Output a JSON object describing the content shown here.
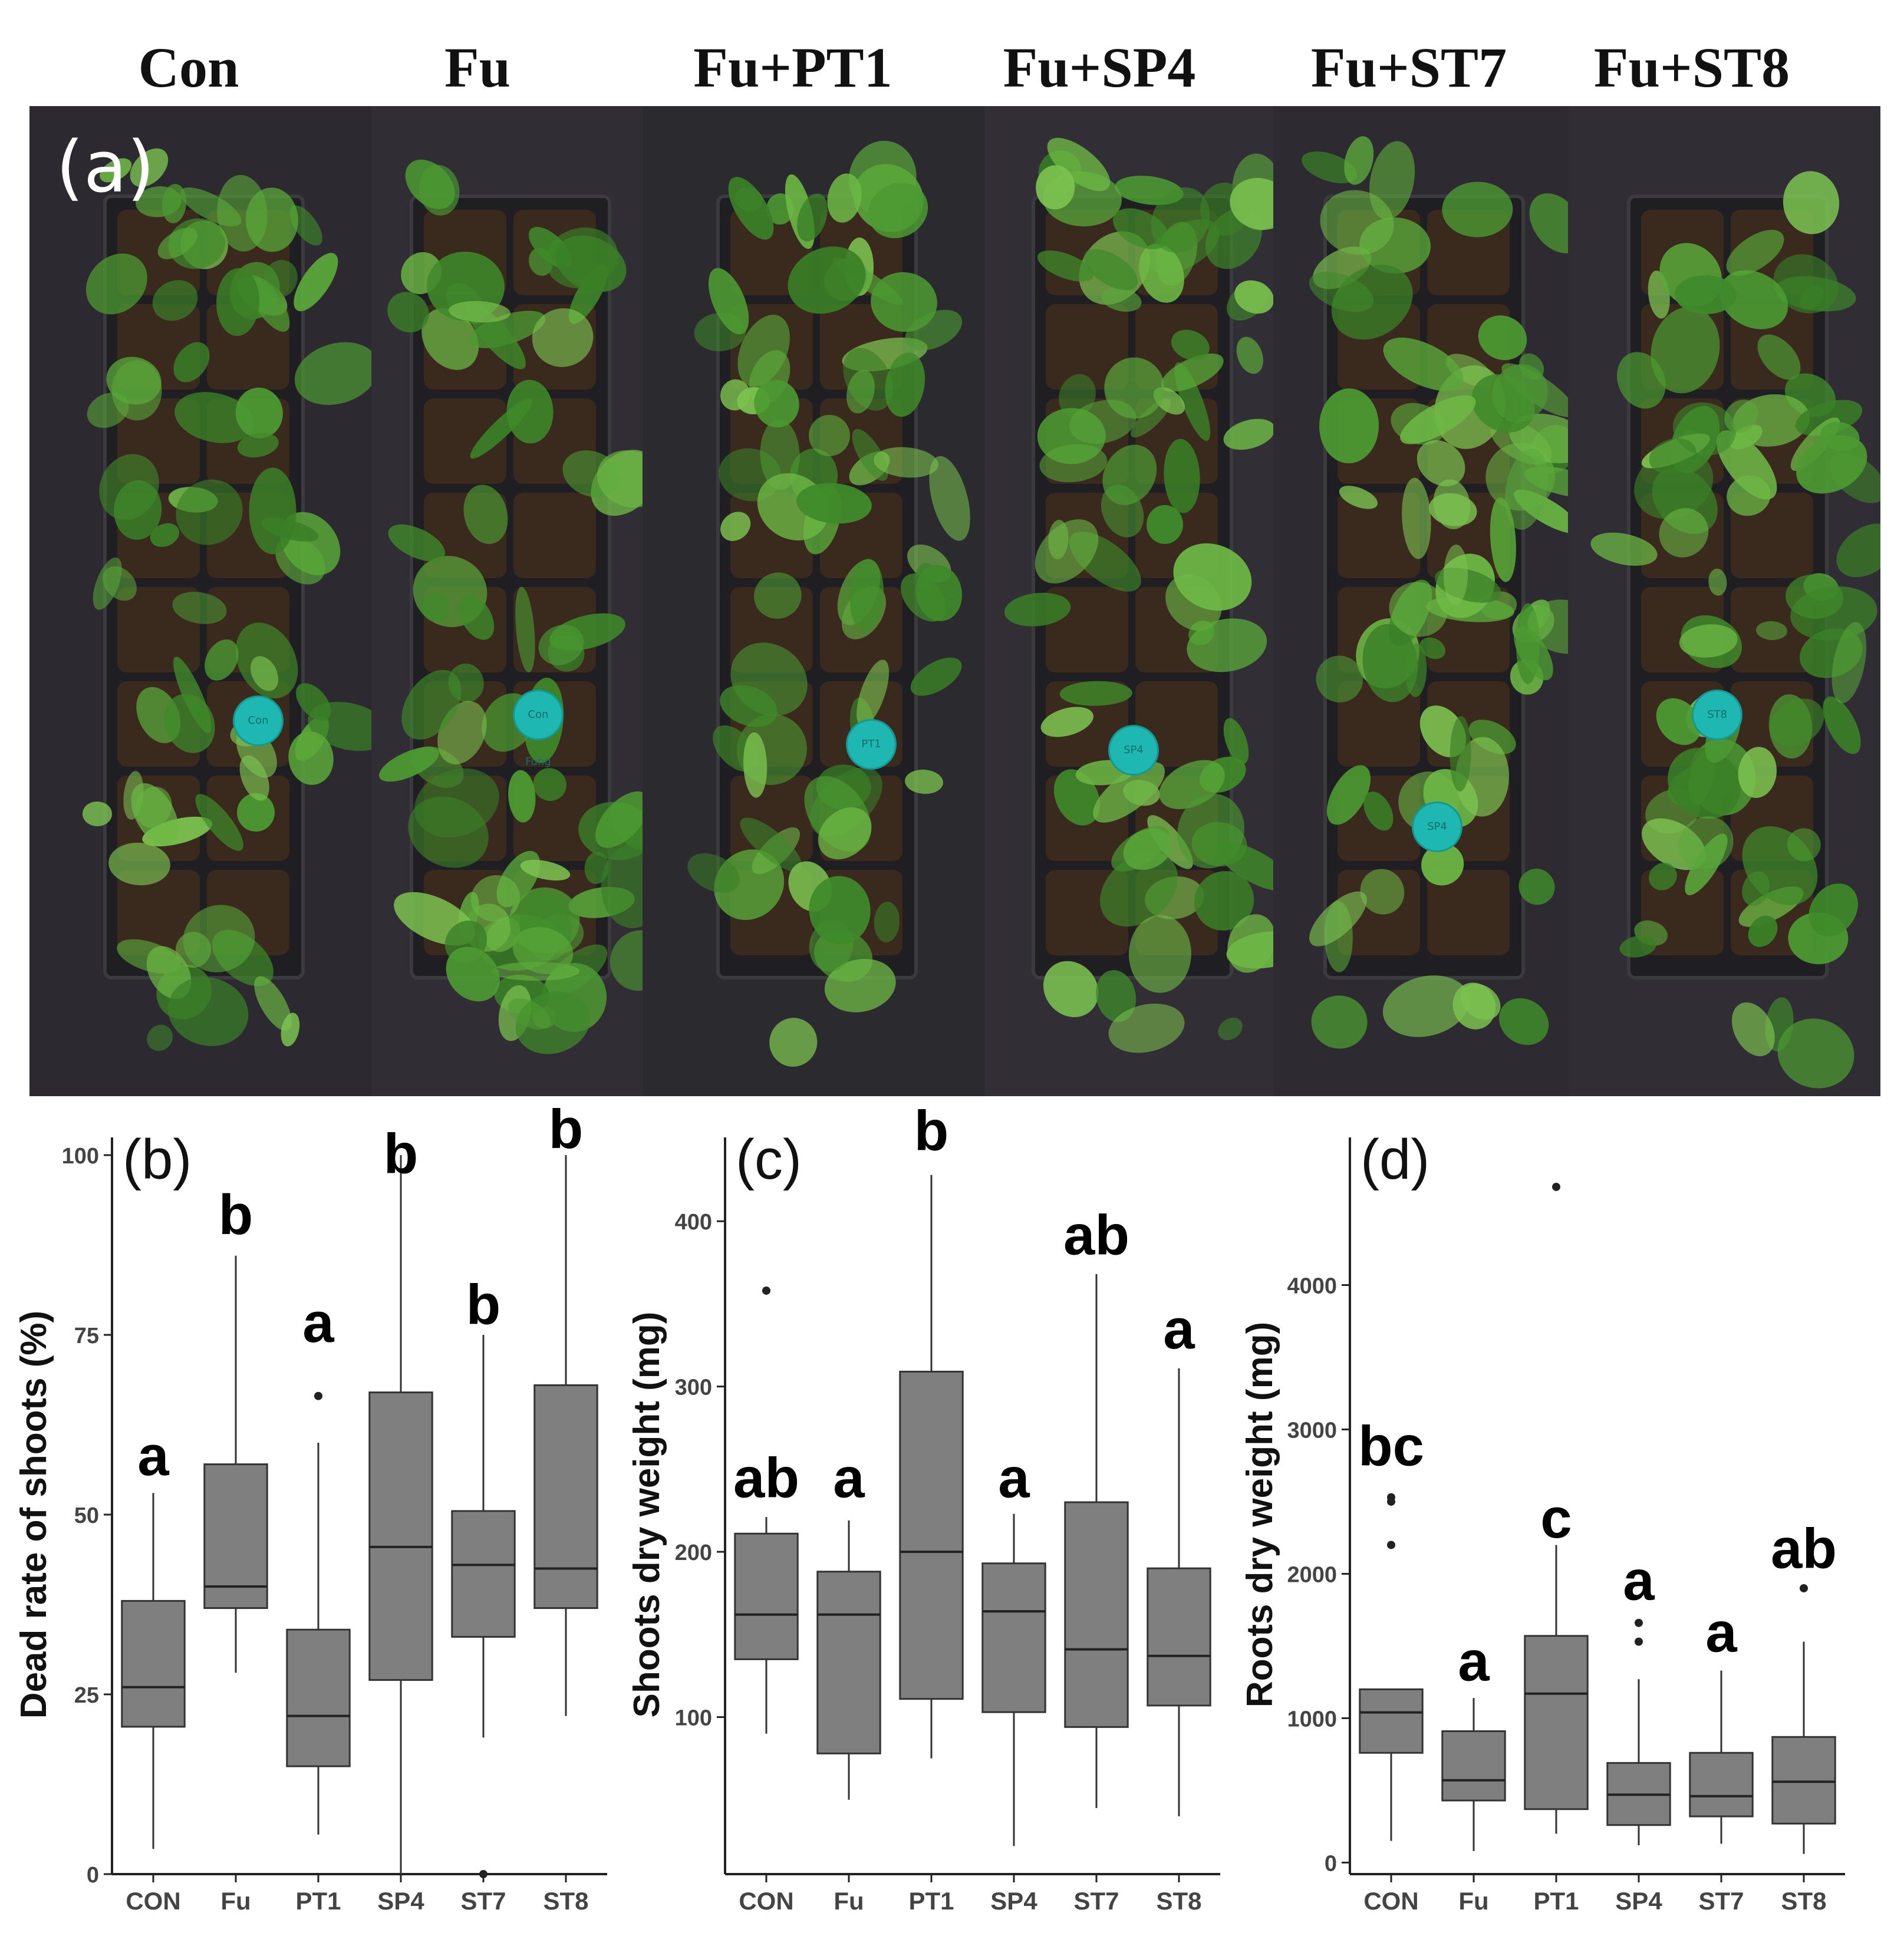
{
  "photo": {
    "panel_label": "(a)",
    "tray_labels": [
      "Con",
      "Fu",
      "Fu+PT1",
      "Fu+SP4",
      "Fu+ST7",
      "Fu+ST8"
    ],
    "tag_labels": [
      "Con",
      "Con Fung",
      "PT1",
      "SP4",
      "SP4",
      "ST8"
    ],
    "colors": {
      "background": "#2e2b31",
      "foliage": "#4c9a32",
      "soil": "#3a2a1e",
      "tag": "#1fb7b2"
    }
  },
  "chart_data": [
    {
      "type": "box",
      "panel_label": "(b)",
      "ylabel": "Dead rate of shoots (%)",
      "ylim": [
        0,
        100
      ],
      "yticks": [
        0,
        25,
        50,
        75,
        100
      ],
      "categories": [
        "CON",
        "Fu",
        "PT1",
        "SP4",
        "ST7",
        "ST8"
      ],
      "boxes": [
        {
          "whisker_low": 3.5,
          "q1": 20.5,
          "median": 26,
          "q3": 38,
          "whisker_high": 53,
          "outliers": []
        },
        {
          "whisker_low": 28,
          "q1": 37,
          "median": 40,
          "q3": 57,
          "whisker_high": 86,
          "outliers": []
        },
        {
          "whisker_low": 5.5,
          "q1": 15,
          "median": 22,
          "q3": 34,
          "whisker_high": 60,
          "outliers": [
            66.5
          ]
        },
        {
          "whisker_low": 0,
          "q1": 27,
          "median": 45.5,
          "q3": 67,
          "whisker_high": 100,
          "outliers": []
        },
        {
          "whisker_low": 19,
          "q1": 33,
          "median": 43,
          "q3": 50.5,
          "whisker_high": 75,
          "outliers": [
            0
          ]
        },
        {
          "whisker_low": 22,
          "q1": 37,
          "median": 42.5,
          "q3": 68,
          "whisker_high": 100,
          "outliers": []
        }
      ],
      "letters": [
        "a",
        "b",
        "a",
        "b",
        "b",
        "b"
      ],
      "letter_y": [
        55.5,
        89,
        74,
        97.5,
        76.5,
        101
      ],
      "colors": {
        "box_fill": "#7f7f7f",
        "box_stroke": "#333333"
      }
    },
    {
      "type": "box",
      "panel_label": "(c)",
      "ylabel": "Shoots dry weight (mg)",
      "ylim": [
        5,
        440
      ],
      "yticks": [
        100,
        200,
        300,
        400
      ],
      "categories": [
        "CON",
        "Fu",
        "PT1",
        "SP4",
        "ST7",
        "ST8"
      ],
      "boxes": [
        {
          "whisker_low": 90,
          "q1": 135,
          "median": 162,
          "q3": 211,
          "whisker_high": 221,
          "outliers": [
            358
          ]
        },
        {
          "whisker_low": 50,
          "q1": 78,
          "median": 162,
          "q3": 188,
          "whisker_high": 219,
          "outliers": []
        },
        {
          "whisker_low": 75,
          "q1": 111,
          "median": 200,
          "q3": 309,
          "whisker_high": 428,
          "outliers": []
        },
        {
          "whisker_low": 22,
          "q1": 103,
          "median": 164,
          "q3": 193,
          "whisker_high": 223,
          "outliers": []
        },
        {
          "whisker_low": 45,
          "q1": 94,
          "median": 141,
          "q3": 230,
          "whisker_high": 368,
          "outliers": []
        },
        {
          "whisker_low": 40,
          "q1": 107,
          "median": 137,
          "q3": 190,
          "whisker_high": 311,
          "outliers": []
        }
      ],
      "letters": [
        "ab",
        "a",
        "b",
        "a",
        "ab",
        "a"
      ],
      "letter_y": [
        233,
        233,
        443,
        233,
        380,
        323
      ],
      "colors": {
        "box_fill": "#7f7f7f",
        "box_stroke": "#333333"
      }
    },
    {
      "type": "box",
      "panel_label": "(d)",
      "ylabel": "Roots dry weight (mg)",
      "ylim": [
        -80,
        4900
      ],
      "yticks": [
        0,
        1000,
        2000,
        3000,
        4000
      ],
      "categories": [
        "CON",
        "Fu",
        "PT1",
        "SP4",
        "ST7",
        "ST8"
      ],
      "boxes": [
        {
          "whisker_low": 150,
          "q1": 760,
          "median": 1040,
          "q3": 1200,
          "whisker_high": 1200,
          "outliers": [
            2200,
            2500,
            2530
          ]
        },
        {
          "whisker_low": 80,
          "q1": 430,
          "median": 570,
          "q3": 910,
          "whisker_high": 1140,
          "outliers": []
        },
        {
          "whisker_low": 200,
          "q1": 370,
          "median": 1170,
          "q3": 1570,
          "whisker_high": 2200,
          "outliers": [
            4680
          ]
        },
        {
          "whisker_low": 120,
          "q1": 260,
          "median": 470,
          "q3": 690,
          "whisker_high": 1270,
          "outliers": [
            1530,
            1660
          ]
        },
        {
          "whisker_low": 130,
          "q1": 320,
          "median": 460,
          "q3": 760,
          "whisker_high": 1330,
          "outliers": []
        },
        {
          "whisker_low": 60,
          "q1": 270,
          "median": 560,
          "q3": 870,
          "whisker_high": 1530,
          "outliers": [
            1900
          ]
        }
      ],
      "letters": [
        "bc",
        "a",
        "c",
        "a",
        "a",
        "ab"
      ],
      "letter_y": [
        2750,
        1260,
        2250,
        1820,
        1460,
        2040
      ],
      "colors": {
        "box_fill": "#7f7f7f",
        "box_stroke": "#333333"
      }
    }
  ]
}
